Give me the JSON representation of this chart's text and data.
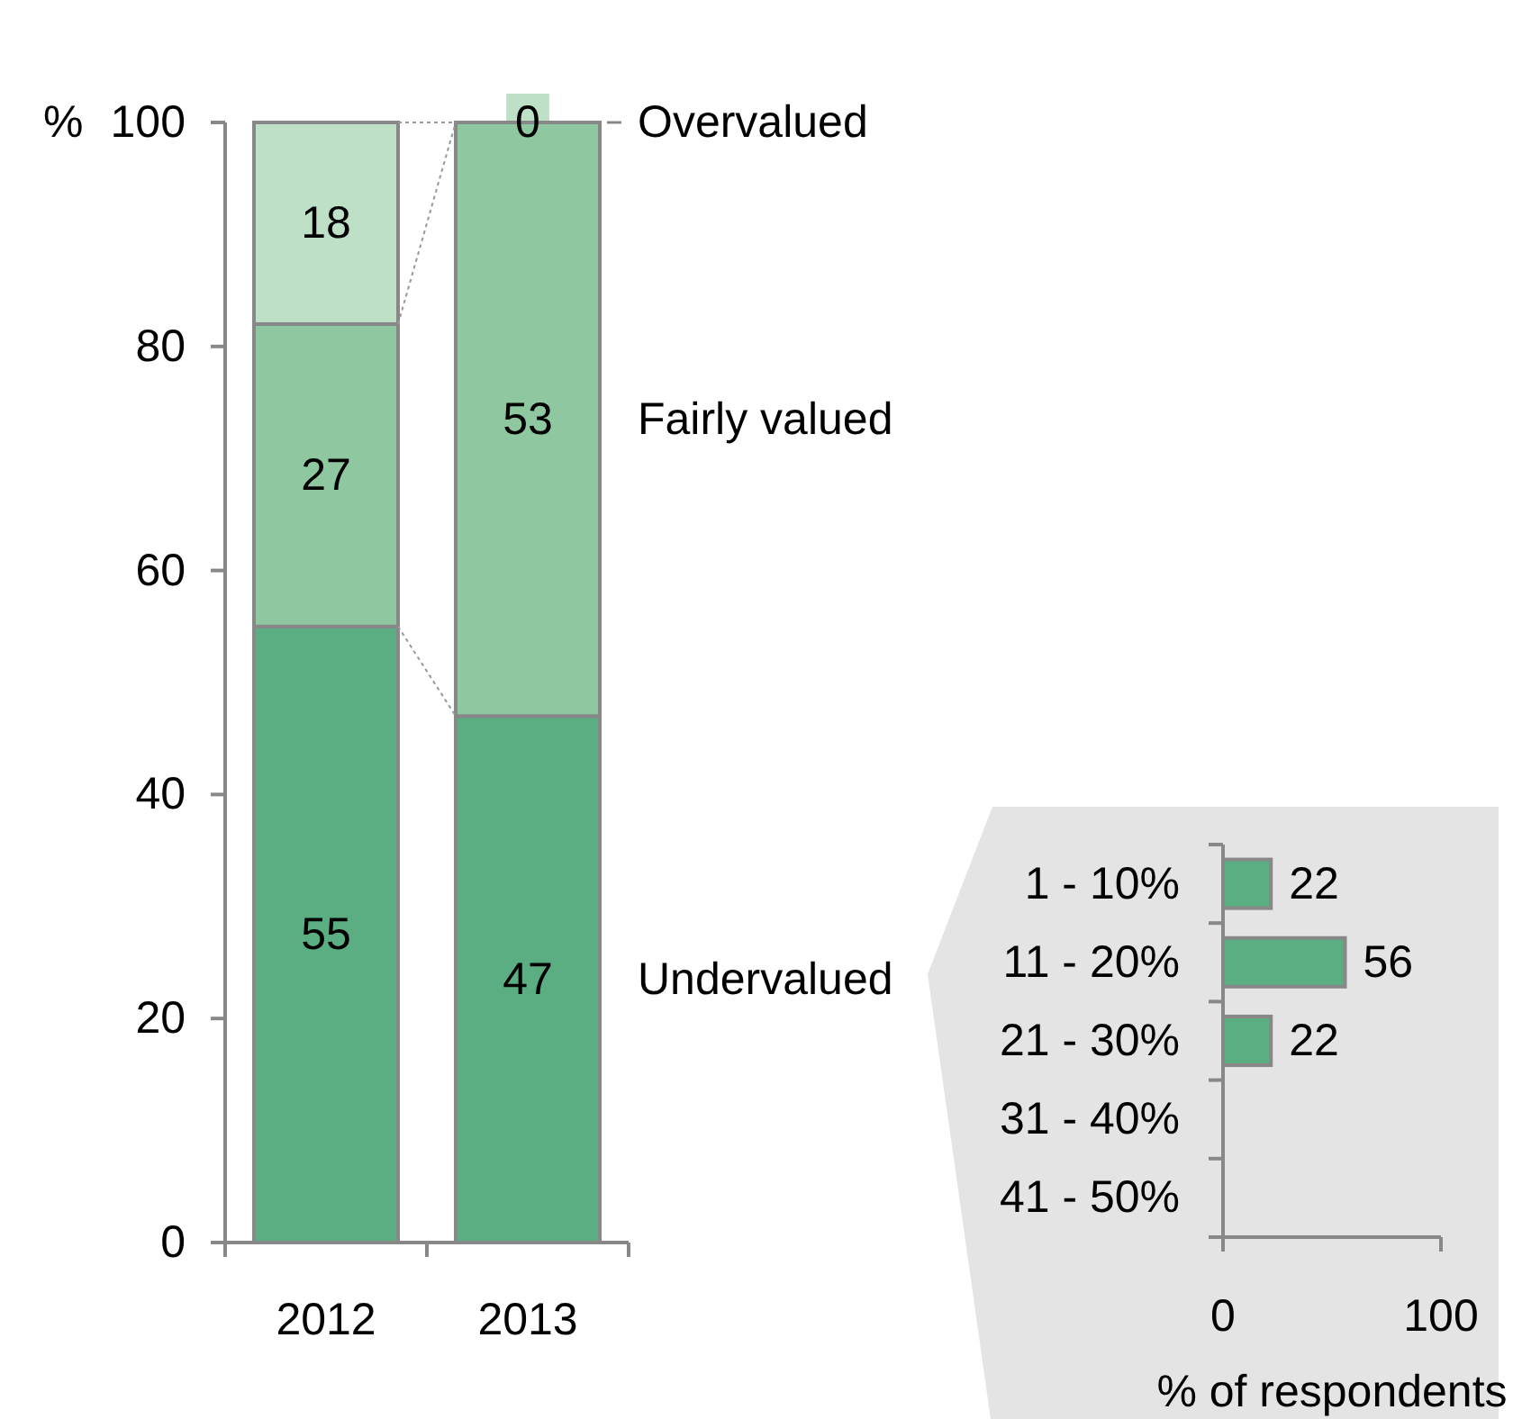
{
  "chart_data": [
    {
      "type": "bar",
      "stacked": true,
      "categories": [
        "2012",
        "2013"
      ],
      "ylabel": "%",
      "ylim": [
        0,
        100
      ],
      "yticks": [
        0,
        20,
        40,
        60,
        80,
        100
      ],
      "data_labels": true,
      "series": [
        {
          "name": "Undervalued",
          "color": "#5bae82",
          "values": [
            55,
            47
          ]
        },
        {
          "name": "Fairly valued",
          "color": "#8fc7a1",
          "values": [
            27,
            53
          ]
        },
        {
          "name": "Overvalued",
          "color": "#bee0c7",
          "values": [
            18,
            0
          ]
        }
      ]
    },
    {
      "type": "bar",
      "orientation": "horizontal",
      "categories": [
        "1 - 10%",
        "11 - 20%",
        "21 - 30%",
        "31 - 40%",
        "41 - 50%"
      ],
      "values": [
        22,
        56,
        22,
        0,
        0
      ],
      "value_labels": [
        "22",
        "56",
        "22",
        null,
        null
      ],
      "color": "#5bae82",
      "xlim": [
        0,
        100
      ],
      "xticks": [
        0,
        100
      ],
      "xlabel": "% of respondents"
    }
  ]
}
